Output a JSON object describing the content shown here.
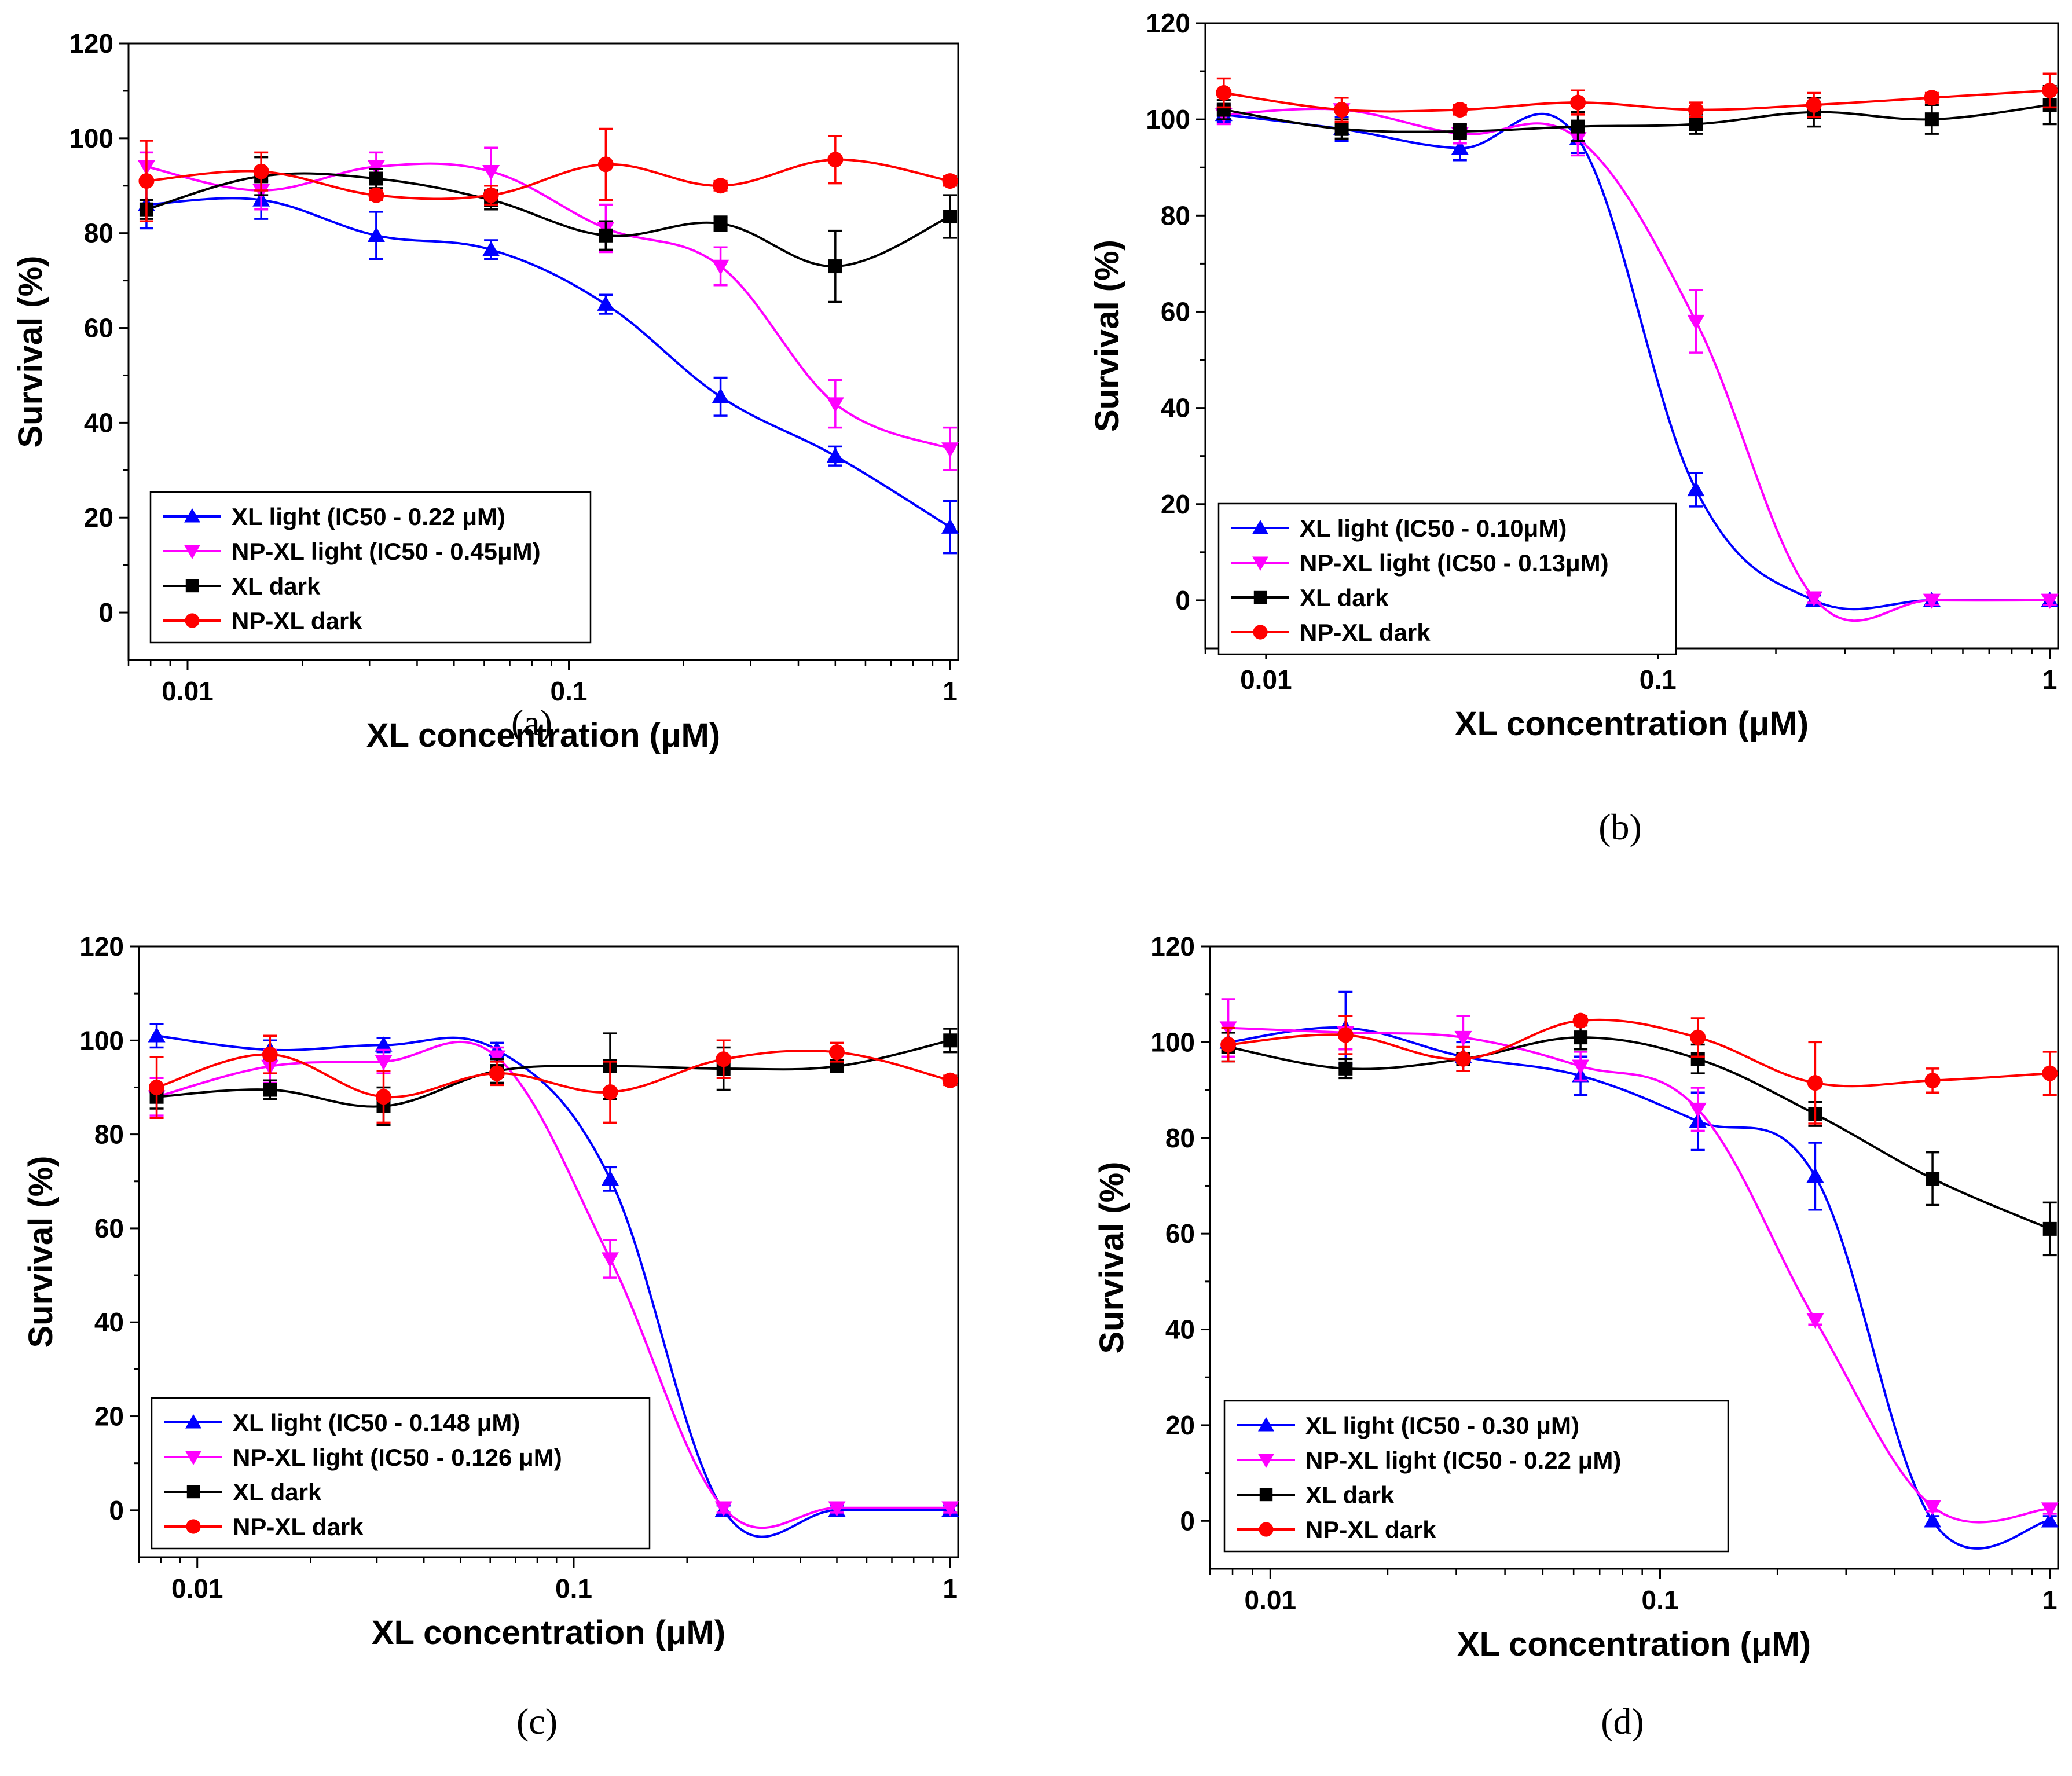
{
  "figure": {
    "background": "#ffffff"
  },
  "series_styles": [
    {
      "name": "XL light",
      "color": "#0000ff",
      "marker": "triangle-up"
    },
    {
      "name": "NP-XL light",
      "color": "#ff00ff",
      "marker": "triangle-down"
    },
    {
      "name": "XL dark",
      "color": "#000000",
      "marker": "square"
    },
    {
      "name": "NP-XL dark",
      "color": "#ff0000",
      "marker": "circle"
    }
  ],
  "chart_data": [
    {
      "id": "a",
      "panel_label": "(a)",
      "type": "scatter",
      "xscale": "log",
      "xlim": [
        0.007,
        1.05
      ],
      "ylim": [
        -10,
        120
      ],
      "xticks": [
        0.01,
        0.1,
        1
      ],
      "xtick_labels": [
        "0.01",
        "0.1",
        "1"
      ],
      "yticks": [
        0,
        20,
        40,
        60,
        80,
        100,
        120
      ],
      "ytick_labels": [
        "0",
        "20",
        "40",
        "60",
        "80",
        "100",
        "120"
      ],
      "xlabel": "XL concentration (μM)",
      "ylabel": "Survival (%)",
      "x": [
        0.0078,
        0.0156,
        0.03125,
        0.0625,
        0.125,
        0.25,
        0.5,
        1
      ],
      "series": [
        {
          "name": "XL light",
          "legend_label": "XL light (IC50 - 0.22 μM)",
          "values": [
            86,
            87,
            79.5,
            76.5,
            65,
            45.5,
            33,
            18
          ],
          "errors": [
            5,
            4,
            5,
            2,
            2,
            4,
            2,
            5.5
          ],
          "fit": "ic50"
        },
        {
          "name": "NP-XL light",
          "legend_label": "NP-XL light (IC50 - 0.45μM)",
          "values": [
            94,
            89,
            94,
            93,
            81,
            73,
            44,
            34.5
          ],
          "errors": [
            3,
            4,
            3,
            5,
            5,
            4,
            5,
            4.5
          ],
          "fit": "ic50"
        },
        {
          "name": "XL dark",
          "legend_label": "XL dark",
          "values": [
            85,
            92,
            91.5,
            87,
            79.5,
            82,
            73,
            83.5
          ],
          "errors": [
            2,
            4,
            2,
            2,
            3,
            1.5,
            7.5,
            4.5
          ],
          "fit": "smooth"
        },
        {
          "name": "NP-XL dark",
          "legend_label": "NP-XL dark",
          "values": [
            91,
            93,
            88,
            88,
            94.5,
            90,
            95.5,
            91
          ],
          "errors": [
            8.5,
            4,
            1,
            2,
            7.5,
            1,
            5,
            1
          ],
          "fit": "smooth"
        }
      ]
    },
    {
      "id": "b",
      "panel_label": "(b)",
      "type": "scatter",
      "xscale": "log",
      "xlim": [
        0.007,
        1.05
      ],
      "ylim": [
        -10,
        120
      ],
      "xticks": [
        0.01,
        0.1,
        1
      ],
      "xtick_labels": [
        "0.01",
        "0.1",
        "1"
      ],
      "yticks": [
        0,
        20,
        40,
        60,
        80,
        100,
        120
      ],
      "ytick_labels": [
        "0",
        "20",
        "40",
        "60",
        "80",
        "100",
        "120"
      ],
      "xlabel": "XL concentration (μM)",
      "ylabel": "Survival (%)",
      "x": [
        0.0078,
        0.0156,
        0.03125,
        0.0625,
        0.125,
        0.25,
        0.5,
        1
      ],
      "series": [
        {
          "name": "XL light",
          "legend_label": "XL light (IC50 - 0.10μM)",
          "values": [
            101,
            98,
            94,
            96,
            23,
            0,
            0,
            0
          ],
          "errors": [
            1.5,
            2.5,
            2.5,
            3,
            3.5,
            1,
            1,
            1
          ],
          "fit": "ic50"
        },
        {
          "name": "NP-XL light",
          "legend_label": "NP-XL light (IC50 - 0.13μM)",
          "values": [
            101,
            102,
            97,
            96,
            58,
            0.5,
            0,
            0
          ],
          "errors": [
            2,
            2.5,
            2,
            3.5,
            6.5,
            1,
            1,
            1
          ],
          "fit": "ic50"
        },
        {
          "name": "XL dark",
          "legend_label": "XL dark",
          "values": [
            102,
            98,
            97.5,
            98.5,
            99,
            101.5,
            100,
            103
          ],
          "errors": [
            2,
            2,
            1.5,
            3,
            2,
            3,
            3,
            4
          ],
          "fit": "smooth"
        },
        {
          "name": "NP-XL dark",
          "legend_label": "NP-XL dark",
          "values": [
            105.5,
            102,
            102,
            103.5,
            102,
            103,
            104.5,
            106
          ],
          "errors": [
            3,
            2.5,
            1,
            2.5,
            1.5,
            2.5,
            1,
            3.5
          ],
          "fit": "smooth"
        }
      ]
    },
    {
      "id": "c",
      "panel_label": "(c)",
      "type": "scatter",
      "xscale": "log",
      "xlim": [
        0.007,
        1.05
      ],
      "ylim": [
        -10,
        120
      ],
      "xticks": [
        0.01,
        0.1,
        1
      ],
      "xtick_labels": [
        "0.01",
        "0.1",
        "1"
      ],
      "yticks": [
        0,
        20,
        40,
        60,
        80,
        100,
        120
      ],
      "ytick_labels": [
        "0",
        "20",
        "40",
        "60",
        "80",
        "100",
        "120"
      ],
      "xlabel": "XL concentration (μM)",
      "ylabel": "Survival (%)",
      "x": [
        0.0078,
        0.0156,
        0.03125,
        0.0625,
        0.125,
        0.25,
        0.5,
        1
      ],
      "series": [
        {
          "name": "XL light",
          "legend_label": "XL light (IC50 - 0.148 μM)",
          "values": [
            101,
            98,
            99,
            98,
            70.5,
            0,
            0,
            0
          ],
          "errors": [
            2.5,
            2,
            1.5,
            1.5,
            2.5,
            1,
            1,
            1
          ],
          "fit": "ic50"
        },
        {
          "name": "NP-XL light",
          "legend_label": "NP-XL light (IC50 - 0.126 μM)",
          "values": [
            88,
            94.5,
            95.5,
            96.5,
            53.5,
            0.5,
            0.5,
            0.5
          ],
          "errors": [
            4,
            3.5,
            2.5,
            2,
            4,
            1,
            1,
            1
          ],
          "fit": "ic50"
        },
        {
          "name": "XL dark",
          "legend_label": "XL dark",
          "values": [
            88,
            89.5,
            86,
            93.5,
            94.5,
            94,
            94.5,
            100
          ],
          "errors": [
            2.5,
            2,
            4,
            2.5,
            7,
            4.5,
            1,
            2.5
          ],
          "fit": "smooth"
        },
        {
          "name": "NP-XL dark",
          "legend_label": "NP-XL dark",
          "values": [
            90,
            97,
            88,
            93,
            89,
            96,
            97.5,
            91.5
          ],
          "errors": [
            6.5,
            4,
            5.5,
            2.5,
            6.5,
            4,
            2,
            1
          ],
          "fit": "smooth"
        }
      ]
    },
    {
      "id": "d",
      "panel_label": "(d)",
      "type": "scatter",
      "xscale": "log",
      "xlim": [
        0.007,
        1.05
      ],
      "ylim": [
        -10,
        120
      ],
      "xticks": [
        0.01,
        0.1,
        1
      ],
      "xtick_labels": [
        "0.01",
        "0.1",
        "1"
      ],
      "yticks": [
        0,
        20,
        40,
        60,
        80,
        100,
        120
      ],
      "ytick_labels": [
        "0",
        "20",
        "40",
        "60",
        "80",
        "100",
        "120"
      ],
      "xlabel": "XL concentration (μM)",
      "ylabel": "Survival (%)",
      "x": [
        0.0078,
        0.0156,
        0.03125,
        0.0625,
        0.125,
        0.25,
        0.5,
        1
      ],
      "series": [
        {
          "name": "XL light",
          "legend_label": "XL light (IC50 - 0.30 μM)",
          "values": [
            100,
            103,
            97,
            93,
            83.5,
            72,
            0,
            0
          ],
          "errors": [
            3,
            7.5,
            3,
            4,
            6,
            7,
            1,
            1
          ],
          "fit": "ic50"
        },
        {
          "name": "NP-XL light",
          "legend_label": "NP-XL light (IC50 - 0.22 μM)",
          "values": [
            103,
            102,
            101,
            95,
            86,
            42,
            3,
            2.5
          ],
          "errors": [
            6,
            3.5,
            4.5,
            3,
            4.5,
            1,
            1,
            1
          ],
          "fit": "ic50"
        },
        {
          "name": "XL dark",
          "legend_label": "XL dark",
          "values": [
            99,
            94.5,
            96.5,
            101,
            96.5,
            85,
            71.5,
            61
          ],
          "errors": [
            3,
            2,
            2.5,
            2.5,
            3,
            2.5,
            5.5,
            5.5
          ],
          "fit": "smooth"
        },
        {
          "name": "NP-XL dark",
          "legend_label": "NP-XL dark",
          "values": [
            99.5,
            101.5,
            96.5,
            104.5,
            101,
            91.5,
            92,
            93.5
          ],
          "errors": [
            3.5,
            4,
            2.5,
            1,
            4,
            8.5,
            2.5,
            4.5
          ],
          "fit": "smooth"
        }
      ]
    }
  ]
}
